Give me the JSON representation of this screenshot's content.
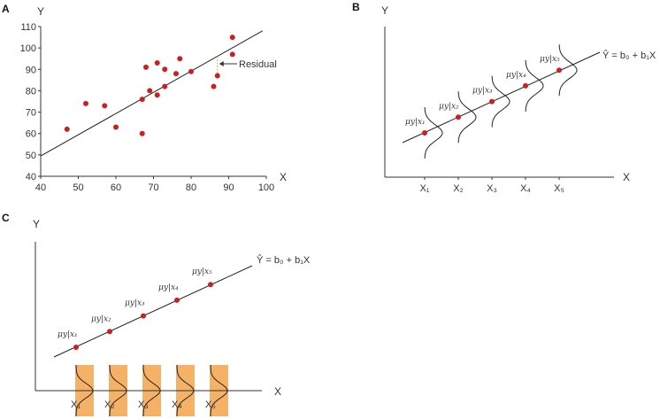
{
  "panels": {
    "a": {
      "label": "A",
      "annotation": "Residual"
    },
    "b": {
      "label": "B",
      "equation": "Ŷ = b₀ + b₁X",
      "x_ticks": [
        "X₁",
        "X₂",
        "X₃",
        "X₄",
        "X₅"
      ],
      "mu_labels": [
        "μy|x₁",
        "μy|x₂",
        "μy|x₃",
        "μy|x₄",
        "μy|x₅"
      ],
      "xlabel": "X",
      "ylabel": "Y"
    },
    "c": {
      "label": "C",
      "equation": "Ŷ = b₀ + b₁X",
      "x_ticks": [
        "X₁",
        "X₂",
        "X₃",
        "X₄",
        "X₅"
      ],
      "mu_labels": [
        "μy|x₁",
        "μy|x₂",
        "μy|x₃",
        "μy|x₄",
        "μy|x₅"
      ],
      "xlabel": "X",
      "ylabel": "Y"
    }
  },
  "colors": {
    "point": "#cc1f1f",
    "residual": "#f0a050",
    "band": "#f5b266",
    "line": "#222222"
  },
  "chart_data": {
    "type": "scatter",
    "xlabel": "X",
    "ylabel": "Y",
    "xlim": [
      40,
      100
    ],
    "ylim": [
      40,
      110
    ],
    "x_ticks": [
      40,
      50,
      60,
      70,
      80,
      90,
      100
    ],
    "y_ticks": [
      40,
      50,
      60,
      70,
      80,
      90,
      100,
      110
    ],
    "grid": false,
    "points": [
      [
        47,
        62
      ],
      [
        52,
        74
      ],
      [
        57,
        73
      ],
      [
        60,
        63
      ],
      [
        67,
        60
      ],
      [
        67,
        76
      ],
      [
        68,
        91
      ],
      [
        69,
        80
      ],
      [
        71,
        93
      ],
      [
        71,
        78
      ],
      [
        73,
        90
      ],
      [
        73,
        82
      ],
      [
        76,
        88
      ],
      [
        77,
        95
      ],
      [
        80,
        89
      ],
      [
        86,
        82
      ],
      [
        87,
        87
      ],
      [
        91,
        97
      ],
      [
        91,
        105
      ]
    ],
    "regression_line": [
      [
        40,
        49.5
      ],
      [
        99,
        108
      ]
    ],
    "residual_at_x": 87
  }
}
